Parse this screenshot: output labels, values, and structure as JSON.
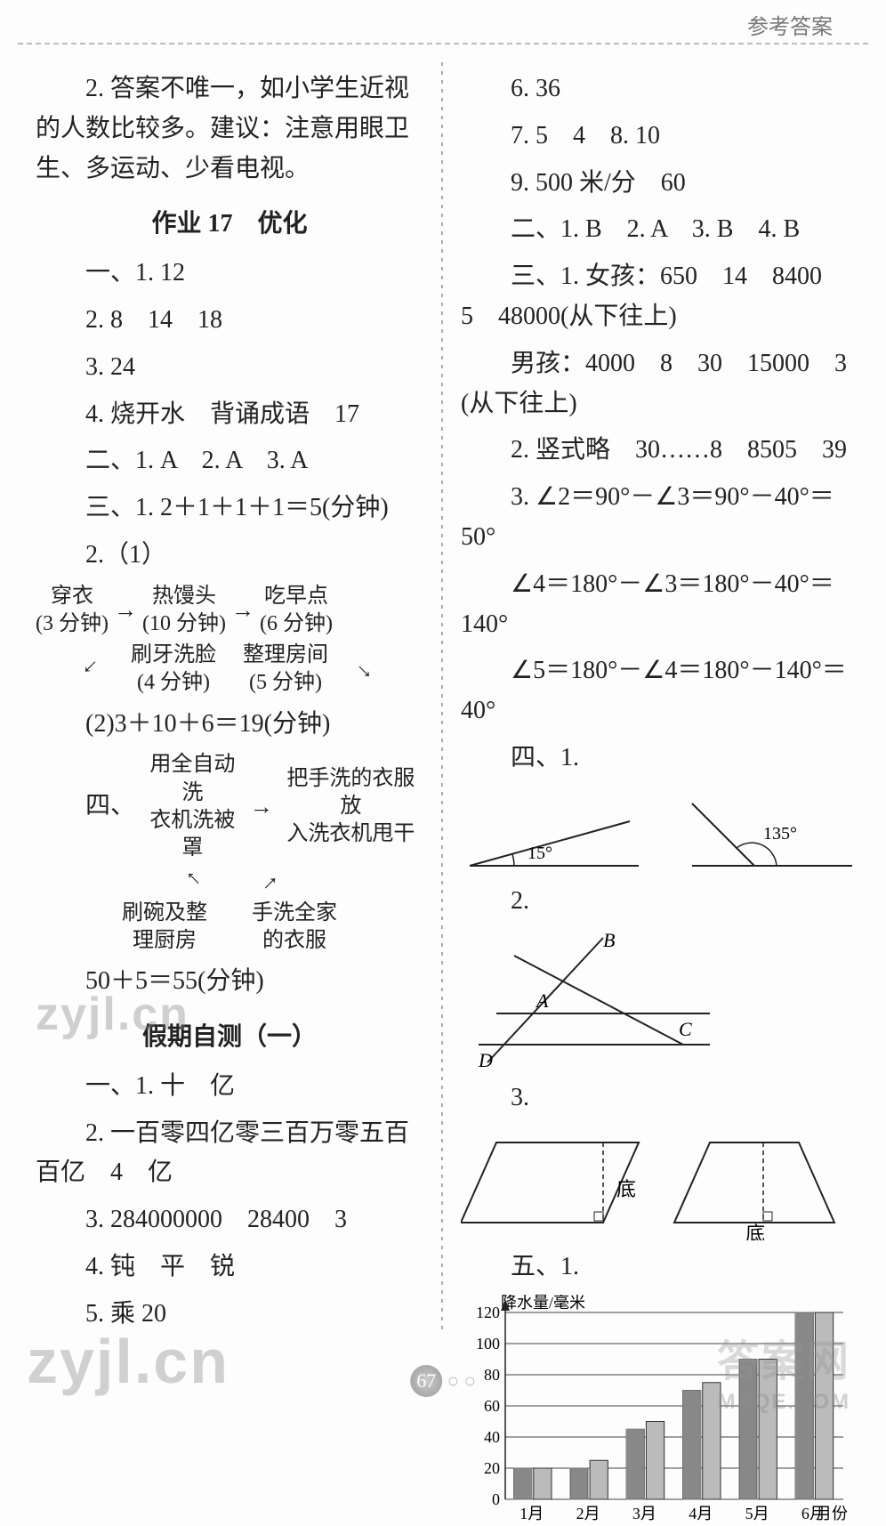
{
  "header": {
    "title": "参考答案"
  },
  "page_number": "67",
  "watermarks": {
    "w1": "zyjl.cn",
    "w2": "zyjl.cn",
    "w3": "答案网",
    "w4": "MXQE.COM"
  },
  "left": {
    "p_top": "2. 答案不唯一，如小学生近视的人数比较多。建议：注意用眼卫生、多运动、少看电视。",
    "title17": "作业 17　优化",
    "l1": "一、1. 12",
    "l2": "2. 8　14　18",
    "l3": "3. 24",
    "l4": "4. 烧开水　背诵成语　17",
    "l5": "二、1. A　2. A　3. A",
    "l6": "三、1. 2＋1＋1＋1＝5(分钟)",
    "l7": "2.（1）",
    "flow1": {
      "n1a": "穿衣",
      "n1b": "(3 分钟)",
      "n2a": "热馒头",
      "n2b": "(10 分钟)",
      "n3a": "吃早点",
      "n3b": "(6 分钟)",
      "n4a": "刷牙洗脸",
      "n4b": "(4 分钟)",
      "n5a": "整理房间",
      "n5b": "(5 分钟)"
    },
    "l8": "(2)3＋10＋6＝19(分钟)",
    "l9": "四、",
    "flow2": {
      "n1a": "用全自动洗",
      "n1b": "衣机洗被罩",
      "n2a": "把手洗的衣服放",
      "n2b": "入洗衣机甩干",
      "n3a": "刷碗及整",
      "n3b": "理厨房",
      "n4a": "手洗全家",
      "n4b": "的衣服"
    },
    "l10": "50＋5＝55(分钟)",
    "titleTest": "假期自测（一）",
    "t1": "一、1. 十　亿",
    "t2": "2. 一百零四亿零三百万零五百　百亿　4　亿",
    "t3": "3. 284000000　28400　3",
    "t4": "4. 钝　平　锐",
    "t5": "5. 乘 20"
  },
  "right": {
    "r1": "6. 36",
    "r2": "7. 5　4　8. 10",
    "r3": "9. 500 米/分　60",
    "r4": "二、1. B　2. A　3. B　4. B",
    "r5": "三、1. 女孩：650　14　8400　5　48000(从下往上)",
    "r6": "男孩：4000　8　30　15000　3　(从下往上)",
    "r7": "2. 竖式略　30……8　8505　39",
    "r8": "3. ∠2＝90°－∠3＝90°－40°＝50°",
    "r9": "∠4＝180°－∠3＝180°－40°＝140°",
    "r10": "∠5＝180°－∠4＝180°－140°＝40°",
    "r11": "四、1.",
    "angle1_label": "15°",
    "angle2_label": "135°",
    "r12": "2.",
    "tri": {
      "A": "A",
      "B": "B",
      "C": "C",
      "D": "D"
    },
    "r13": "3.",
    "shape_label": "底",
    "r14": "五、1.",
    "chart": {
      "type": "bar",
      "ylabel": "降水量/毫米",
      "xlabel_suffix": "月份",
      "categories": [
        "1月",
        "2月",
        "3月",
        "4月",
        "5月",
        "6月"
      ],
      "series1": [
        20,
        20,
        45,
        70,
        90,
        120
      ],
      "series2": [
        20,
        25,
        50,
        75,
        90,
        120
      ],
      "ylim": [
        0,
        120
      ],
      "ytick_step": 20,
      "bar_color1": "#888888",
      "bar_color2": "#bbbbbb",
      "grid_color": "#444444",
      "background": "#ffffff",
      "label_fontsize": 18
    }
  }
}
